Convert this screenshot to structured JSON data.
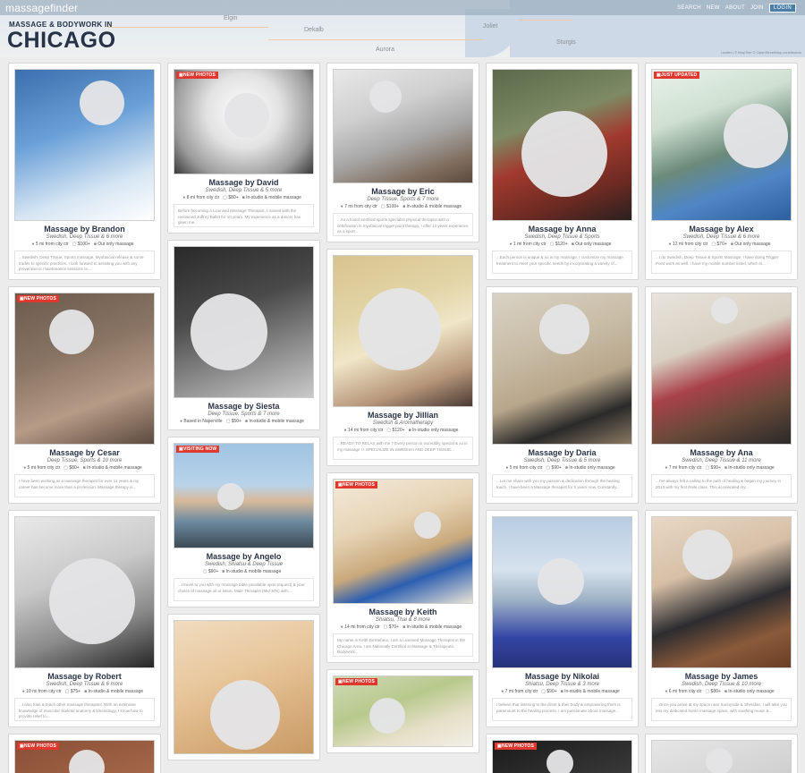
{
  "header": {
    "logo": "massagefinder",
    "nav": [
      "SEARCH",
      "NEW",
      "ABOUT",
      "JOIN"
    ],
    "login": "LOGIN",
    "subtitle": "MASSAGE & BODYWORK IN",
    "city": "CHICAGO",
    "map_labels": [
      "Elgin",
      "Dekalb",
      "Aurora",
      "Joliet",
      "Sturgis"
    ],
    "attribution": "Leaflet | © MapTiler © OpenStreetMap contributors"
  },
  "colors": {
    "badge": "#e0382f",
    "title": "#253247",
    "topbar": "#8ca0b4"
  },
  "columns": [
    [
      {
        "name": "Massage by Brandon",
        "mods": "Swedish, Deep Tissue & 6 more",
        "meta": [
          "5 mi from city ctr",
          "$100+",
          "Out only massage"
        ],
        "desc": "...Swedish, Deep Tissue, Sports massage, Myofascial release & some trades to specific practices. I look forward to assisting you with any preventive or maintenance sessions or...",
        "photo_h": 170,
        "bg": "linear-gradient(160deg,#3c6fae 0%,#6aa0d8 40%,#d7e6f3 75%,#ffffff 100%)",
        "face": [
          72,
          12,
          50,
          50
        ],
        "badge": ""
      },
      {
        "name": "Massage by Cesar",
        "mods": "Deep Tissue, Sports & 10 more",
        "meta": [
          "5 mi from city ctr",
          "$80+",
          "In-studio & mobile massage"
        ],
        "desc": "I have been working as a massage therapist for over 11 years & my career has become more than a profession. Massage therapy is...",
        "photo_h": 170,
        "bg": "linear-gradient(160deg,#6b5a4c 0%,#8a7565 40%,#b69b86 70%,#5c4a3f 100%)",
        "face": [
          38,
          18,
          50,
          50
        ],
        "badge": "NEW PHOTOS"
      },
      {
        "name": "Massage by Robert",
        "mods": "Swedish, Deep Tissue & 6 more",
        "meta": [
          "10 mi from city ctr",
          "$75+",
          "In-studio & mobile massage"
        ],
        "desc": "...I also train & teach other massage therapists. With an extensive knowledge of muscular skeletal anatomy & kinesiology, I know how to provide relief to...",
        "photo_h": 170,
        "bg": "linear-gradient(160deg,#e9e9e9 0%,#c9c9c9 40%,#8a8a8a 70%,#262626 100%)",
        "face": [
          38,
          46,
          96,
          96
        ],
        "badge": ""
      },
      {
        "name": "",
        "mods": "",
        "meta": [],
        "desc": "",
        "photo_h": 50,
        "bg": "linear-gradient(160deg,#8a4e35 0%,#a76a4c 100%)",
        "face": [
          60,
          10,
          40,
          40
        ],
        "badge": "NEW PHOTOS"
      }
    ],
    [
      {
        "name": "Massage by David",
        "mods": "Swedish, Deep Tissue & 5 more",
        "meta": [
          "8 mi from city ctr",
          "$80+",
          "In-studio & mobile massage"
        ],
        "desc": "Before becoming a Licensed Massage Therapist, I trained with the renowned Joffrey Ballet for 10 years. My experience as a dancer has given me...",
        "photo_h": 118,
        "bg": "radial-gradient(circle at 50% 40%,#ffffff 0%,#e2e2e2 40%,#9b9b9b 75%,#3a3a3a 100%)",
        "face": [
          56,
          26,
          50,
          50
        ],
        "badge": "NEW PHOTOS"
      },
      {
        "name": "Massage by Siesta",
        "mods": "Deep Tissue, Sports & 7 more",
        "meta": [
          "Based in Naperville",
          "$50+",
          "In-studio & mobile massage"
        ],
        "desc": "",
        "photo_h": 170,
        "bg": "linear-gradient(160deg,#2a2a2a 0%,#4a4a4a 40%,#8a8a8a 70%,#c9c9c9 100%)",
        "face": [
          18,
          52,
          86,
          86
        ],
        "badge": ""
      },
      {
        "name": "Massage by Angelo",
        "mods": "Swedish, Shiatsu & Deep Tissue",
        "meta": [
          "$90+",
          "In-studio & mobile massage"
        ],
        "desc": "...I travel to you with my massage table (available upon request) & your choice of massage oil or lotion. Male Therapist (Mid 30's) with...",
        "photo_h": 118,
        "bg": "linear-gradient(180deg,#9fc4e2 0%,#b9d3ea 40%,#d8b99a 55%,#6d8aa0 75%,#3c4a56 100%)",
        "face": [
          48,
          44,
          30,
          30
        ],
        "badge": "VISITING NOW"
      },
      {
        "name": "",
        "mods": "",
        "meta": [],
        "desc": "",
        "photo_h": 150,
        "bg": "linear-gradient(160deg,#f0dcc0 0%,#e8c79c 40%,#d9b07e 70%,#c99a66 100%)",
        "face": [
          40,
          66,
          78,
          78
        ],
        "badge": ""
      }
    ],
    [
      {
        "name": "Massage by Eric",
        "mods": "Deep Tissue, Sports & 7 more",
        "meta": [
          "7 mi from city ctr",
          "$100+",
          "In-studio & mobile massage"
        ],
        "desc": "...As a board certified sports specialist physical therapist with a certification in myofascial trigger point therapy, I offer 12 years experience as a sport...",
        "photo_h": 128,
        "bg": "linear-gradient(160deg,#e8e8e8 0%,#cfcfcf 35%,#a8a8a8 60%,#7d6a5a 85%,#5a4a3e 100%)",
        "face": [
          40,
          12,
          36,
          36
        ],
        "badge": ""
      },
      {
        "name": "Massage by Jillian",
        "mods": "Swedish & Aromatherapy",
        "meta": [
          "14 mi from city ctr",
          "$120+",
          "In-studio only massage"
        ],
        "desc": "...READY TO RELAX with me ? Every person is incredibly special & so is my massage ! I SPECIALIZE IN SWEDISH AND DEEP TISSUE...",
        "photo_h": 170,
        "bg": "linear-gradient(160deg,#d8c38e 0%,#e3d5a8 35%,#f0e6c8 55%,#b7967a 80%,#4a3a34 100%)",
        "face": [
          28,
          36,
          92,
          92
        ],
        "badge": ""
      },
      {
        "name": "Massage by Keith",
        "mods": "Shiatsu, Thai & 8 more",
        "meta": [
          "14 mi from city ctr",
          "$70+",
          "In-studio & mobile massage"
        ],
        "desc": "My name is Keith DeStefano, I am a Licensed Massage Therapist in the Chicago Area. I am Nationally Certified in Massage & Therapeutic Bodywork...",
        "photo_h": 140,
        "bg": "linear-gradient(160deg,#f4ead8 0%,#e6d4b6 35%,#c9a97c 60%,#2c5fb0 75%,#e9e2d6 100%)",
        "face": [
          90,
          36,
          30,
          30
        ],
        "badge": "NEW PHOTOS"
      },
      {
        "name": "",
        "mods": "",
        "meta": [],
        "desc": "",
        "photo_h": 80,
        "bg": "linear-gradient(160deg,#cfd9b6 0%,#b8c98c 40%,#e6e0c9 70%,#f2efe6 100%)",
        "face": [
          40,
          24,
          40,
          40
        ],
        "badge": "NEW PHOTOS"
      }
    ],
    [
      {
        "name": "Massage by Anna",
        "mods": "Swedish, Deep Tissue & Sports",
        "meta": [
          "1 mi from city ctr",
          "$120+",
          "Out only massage"
        ],
        "desc": "...Each person is unique & so is my massage. I customize my massage treatment to meet your specific needs by incorporating a variety of...",
        "photo_h": 170,
        "bg": "linear-gradient(160deg,#5b6a4a 0%,#7d8a64 35%,#a23a2e 55%,#6a2a22 80%,#2a2020 100%)",
        "face": [
          32,
          46,
          96,
          96
        ],
        "badge": ""
      },
      {
        "name": "Massage by Daria",
        "mods": "Swedish, Deep Tissue & 5 more",
        "meta": [
          "5 mi from city ctr",
          "$90+",
          "In-studio only massage"
        ],
        "desc": "...Let me share with you my passion & dedication through the healing touch. I have been a Massage therapist for 5 years now. Constantly...",
        "photo_h": 170,
        "bg": "linear-gradient(160deg,#d9d2c4 0%,#c8bca6 35%,#b8a68a 60%,#2a2a2a 80%,#8a7862 100%)",
        "face": [
          52,
          12,
          56,
          56
        ],
        "badge": ""
      },
      {
        "name": "Massage by Nikolai",
        "mods": "Shiatsu, Deep Tissue & 3 more",
        "meta": [
          "7 mi from city ctr",
          "$90+",
          "In-studio & mobile massage"
        ],
        "desc": "I believe that listening to the client & their body & empowering them is paramount to the healing process. I am passionate about massage...",
        "photo_h": 170,
        "bg": "linear-gradient(180deg,#b8cde2 0%,#d6e2ee 35%,#9fb3c6 55%,#3346a6 80%,#27327a 100%)",
        "face": [
          50,
          46,
          52,
          52
        ],
        "badge": ""
      },
      {
        "name": "",
        "mods": "",
        "meta": [],
        "desc": "",
        "photo_h": 40,
        "bg": "linear-gradient(160deg,#1a1a1a 0%,#3a3a3a 100%)",
        "face": [
          60,
          10,
          30,
          30
        ],
        "badge": "NEW PHOTOS"
      }
    ],
    [
      {
        "name": "Massage by Alex",
        "mods": "Swedish, Deep Tissue & 6 more",
        "meta": [
          "12 mi from city ctr",
          "$70+",
          "Out only massage"
        ],
        "desc": "...I do Swedish, Deep Tissue & Sports Massage. I have doing Trigger Point work as well. I have my mobile number listed, which is...",
        "photo_h": 170,
        "bg": "linear-gradient(160deg,#e8f2ea 0%,#cfe0d2 30%,#6b8a7a 55%,#4f86c6 75%,#2d5f9c 100%)",
        "face": [
          80,
          38,
          72,
          72
        ],
        "badge": "JUST UPDATED"
      },
      {
        "name": "Massage by Ana",
        "mods": "Swedish, Deep Tissue & 11 more",
        "meta": [
          "7 mi from city ctr",
          "$90+",
          "In-studio only massage"
        ],
        "desc": "...I've always felt a calling to the path of healing & began my journey in 2013 with my first Reiki class. This accelerated my...",
        "photo_h": 170,
        "bg": "linear-gradient(160deg,#e8e4dc 0%,#d8d0c2 35%,#a9424a 55%,#6a4a3a 75%,#2a2a2a 100%)",
        "face": [
          66,
          4,
          30,
          30
        ],
        "badge": ""
      },
      {
        "name": "Massage by James",
        "mods": "Swedish, Deep Tissue & 10 more",
        "meta": [
          "6 mi from city ctr",
          "$80+",
          "In-studio only massage"
        ],
        "desc": "...Once you arrive at my space near Sunnyside & Sheridan, I will take you into my dedicated home massage space, with soothing music &...",
        "photo_h": 170,
        "bg": "linear-gradient(160deg,#e8d8c6 0%,#d6bfa6 35%,#2c2c30 60%,#8a5a3a 80%,#6a3e26 100%)",
        "face": [
          34,
          14,
          56,
          56
        ],
        "badge": ""
      },
      {
        "name": "",
        "mods": "",
        "meta": [],
        "desc": "",
        "photo_h": 40,
        "bg": "linear-gradient(160deg,#e6e6e6 0%,#cfcfcf 100%)",
        "face": [
          60,
          8,
          30,
          30
        ],
        "badge": ""
      }
    ]
  ]
}
